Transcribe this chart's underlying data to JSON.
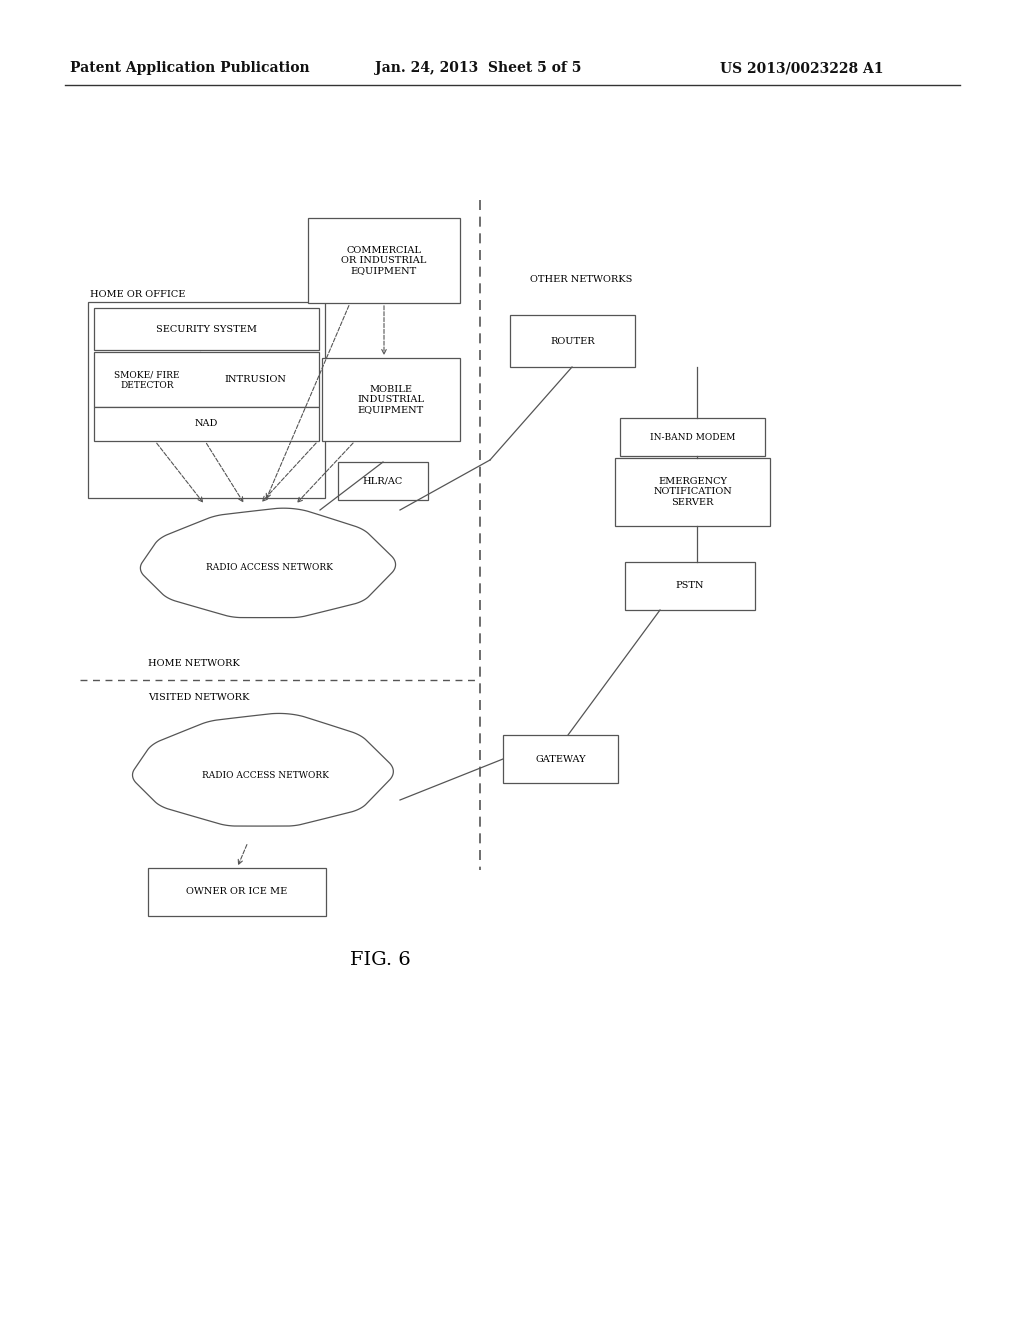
{
  "header_left": "Patent Application Publication",
  "header_mid": "Jan. 24, 2013  Sheet 5 of 5",
  "header_right": "US 2013/0023228 A1",
  "fig_label": "FIG. 6",
  "bg_color": "#ffffff",
  "box_ec": "#555555",
  "text_color": "#000000",
  "lw": 0.9,
  "fs_base": 7.5
}
